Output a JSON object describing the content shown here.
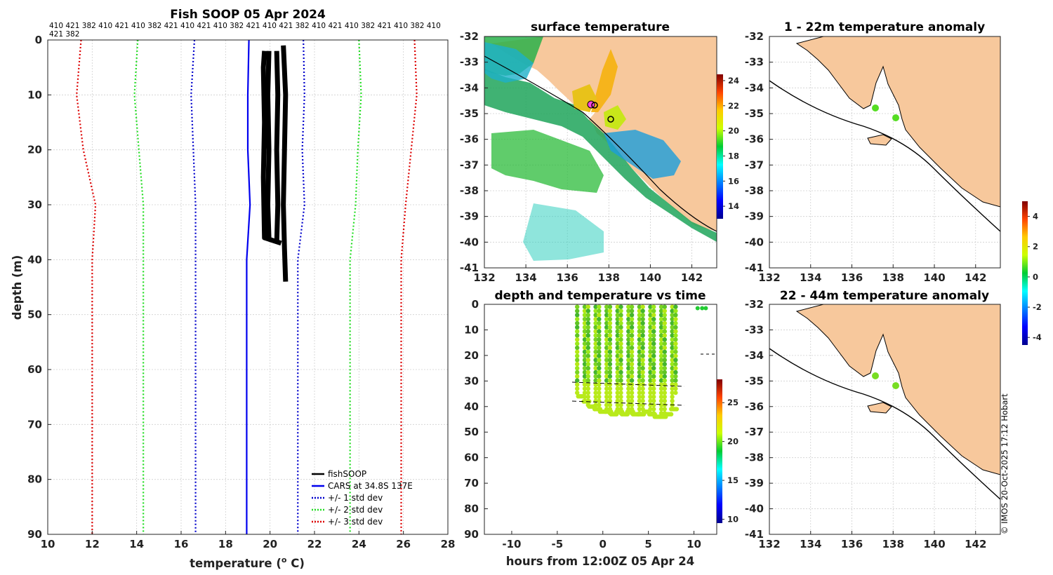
{
  "chart_data": [
    {
      "type": "line",
      "title": "Fish SOOP 05 Apr 2024",
      "xlabel": "temperature (",
      "xlabel_sup": "o",
      "xlabel_end": " C)",
      "ylabel": "depth (m)",
      "xlim": [
        10,
        28
      ],
      "ylim": [
        90,
        0
      ],
      "xticks": [
        10,
        12,
        14,
        16,
        18,
        20,
        22,
        24,
        26,
        28
      ],
      "yticks": [
        0,
        10,
        20,
        30,
        40,
        50,
        60,
        70,
        80,
        90
      ],
      "dive_labels_line1": "410 421 382 410 421 410 382 421 410 421 410 382 421 410 421 382 410 421 410 382 421 410 382 410",
      "dive_labels_line2": "421 382",
      "legend": [
        "fishSOOP",
        "CARS at 34.8S 137E",
        "+/- 1 std dev",
        "+/- 2 std dev",
        "+/- 3 std dev"
      ],
      "colors": {
        "fishsoop": "#000000",
        "cars": "#0000ee",
        "std1": "#0000cc",
        "std2": "#22dd22",
        "std3": "#dd0000"
      },
      "series": [
        {
          "name": "CARS at 34.8S 137E",
          "depth": [
            0,
            10,
            20,
            30,
            40,
            90
          ],
          "temp": [
            19.05,
            19.0,
            19.0,
            19.1,
            18.95,
            18.95
          ]
        },
        {
          "name": "+1 std dev",
          "depth": [
            0,
            10,
            20,
            30,
            40,
            90
          ],
          "temp": [
            21.5,
            21.55,
            21.45,
            21.55,
            21.25,
            21.25
          ]
        },
        {
          "name": "-1 std dev",
          "depth": [
            0,
            10,
            20,
            30,
            40,
            90
          ],
          "temp": [
            16.6,
            16.45,
            16.55,
            16.65,
            16.65,
            16.65
          ]
        },
        {
          "name": "+2 std dev",
          "depth": [
            0,
            10,
            20,
            30,
            40,
            90
          ],
          "temp": [
            24.0,
            24.1,
            23.95,
            23.85,
            23.6,
            23.6
          ]
        },
        {
          "name": "-2 std dev",
          "depth": [
            0,
            10,
            20,
            30,
            40,
            90
          ],
          "temp": [
            14.05,
            13.9,
            14.1,
            14.3,
            14.3,
            14.3
          ]
        },
        {
          "name": "+3 std dev",
          "depth": [
            0,
            10,
            20,
            30,
            40,
            90
          ],
          "temp": [
            26.5,
            26.6,
            26.35,
            26.1,
            25.9,
            25.9
          ]
        },
        {
          "name": "-3 std dev",
          "depth": [
            0,
            10,
            20,
            30,
            40,
            90
          ],
          "temp": [
            11.5,
            11.3,
            11.6,
            12.15,
            12.0,
            12.0
          ]
        },
        {
          "name": "fishSOOP",
          "profiles": [
            {
              "depth": [
                2,
                5,
                15,
                25,
                36,
                37
              ],
              "temp": [
                19.75,
                19.7,
                19.75,
                19.7,
                19.75,
                20.5
              ]
            },
            {
              "depth": [
                2,
                10,
                20,
                30,
                36
              ],
              "temp": [
                19.95,
                19.9,
                19.95,
                19.9,
                19.95
              ]
            },
            {
              "depth": [
                1,
                10,
                20,
                30,
                38,
                44
              ],
              "temp": [
                20.6,
                20.7,
                20.65,
                20.6,
                20.65,
                20.7
              ]
            },
            {
              "depth": [
                2,
                10,
                20,
                30,
                37
              ],
              "temp": [
                20.3,
                20.35,
                20.3,
                20.35,
                20.3
              ]
            }
          ]
        }
      ]
    },
    {
      "type": "heatmap",
      "title": "surface temperature",
      "xlim": [
        132,
        143.2
      ],
      "ylim": [
        -41,
        -32
      ],
      "xticks": [
        132,
        134,
        136,
        138,
        140,
        142
      ],
      "yticks": [
        -32,
        -33,
        -34,
        -35,
        -36,
        -37,
        -38,
        -39,
        -40,
        -41
      ],
      "colorbar_ticks": [
        14,
        16,
        18,
        20,
        22,
        24
      ],
      "colorbar_range": [
        13,
        24.5
      ]
    },
    {
      "type": "heatmap",
      "title": "1 - 22m temperature anomaly",
      "xlim": [
        132,
        143.2
      ],
      "ylim": [
        -41,
        -32
      ],
      "xticks": [
        132,
        134,
        136,
        138,
        140,
        142
      ],
      "yticks": [
        -32,
        -33,
        -34,
        -35,
        -36,
        -37,
        -38,
        -39,
        -40,
        -41
      ]
    },
    {
      "type": "scatter",
      "title": "depth and temperature vs time",
      "xlabel": "hours from 12:00Z 05 Apr 24",
      "xlim": [
        -13,
        12.5
      ],
      "ylim": [
        90,
        0
      ],
      "xticks": [
        -10,
        -5,
        0,
        5,
        10
      ],
      "yticks": [
        0,
        10,
        20,
        30,
        40,
        50,
        60,
        70,
        80,
        90
      ],
      "colorbar_ticks": [
        10,
        15,
        20,
        25
      ],
      "colorbar_range": [
        9.5,
        28
      ],
      "profile_hours": [
        -2.7,
        -2.1,
        -1.5,
        -0.9,
        -0.3,
        0.3,
        0.9,
        1.5,
        2.1,
        2.7,
        3.3,
        3.9,
        4.5,
        5.1,
        5.7,
        6.3,
        6.9,
        7.5,
        8.1
      ],
      "profile_max_depth": [
        36,
        38,
        40,
        41,
        42,
        42,
        43,
        42,
        43,
        42,
        43,
        43,
        42,
        43,
        44,
        44,
        43,
        41,
        36
      ]
    },
    {
      "type": "heatmap",
      "title": "22 - 44m temperature anomaly",
      "xlim": [
        132,
        143.2
      ],
      "ylim": [
        -41,
        -32
      ],
      "xticks": [
        132,
        134,
        136,
        138,
        140,
        142
      ],
      "yticks": [
        -32,
        -33,
        -34,
        -35,
        -36,
        -37,
        -38,
        -39,
        -40,
        -41
      ],
      "colorbar_ticks": [
        -4,
        -2,
        0,
        2,
        4
      ],
      "colorbar_range": [
        -4.5,
        5
      ]
    }
  ],
  "copyright": "© IMOS 20-Oct-2025 17:12 Hobart"
}
